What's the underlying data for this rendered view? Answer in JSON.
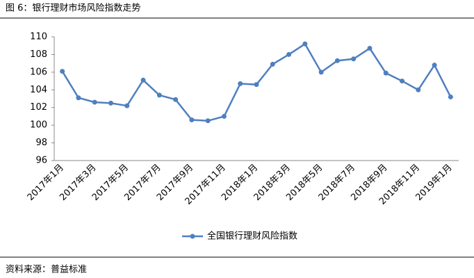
{
  "chart_data": {
    "type": "line",
    "title": "图 6：银行理财市场风险指数走势",
    "source": "资料来源：普益标准",
    "categories": [
      "2017年1月",
      null,
      "2017年3月",
      null,
      "2017年5月",
      null,
      "2017年7月",
      null,
      "2017年9月",
      null,
      "2017年11月",
      null,
      "2018年1月",
      null,
      "2018年3月",
      null,
      "2018年5月",
      null,
      "2018年7月",
      null,
      "2018年9月",
      null,
      "2018年11月",
      null,
      "2019年1月"
    ],
    "series": [
      {
        "name": "全国银行理财风险指数",
        "color": "#4f7fbf",
        "values": [
          106.1,
          103.1,
          102.6,
          102.5,
          102.2,
          105.1,
          103.4,
          102.9,
          100.6,
          100.5,
          101.0,
          104.7,
          104.6,
          106.9,
          108.0,
          109.2,
          106.0,
          107.3,
          107.5,
          108.7,
          105.9,
          105.0,
          104.0,
          106.8,
          103.2
        ]
      }
    ],
    "ylim": [
      96,
      110
    ],
    "yticks": [
      96,
      98,
      100,
      102,
      104,
      106,
      108,
      110
    ],
    "legend": "bottom"
  }
}
